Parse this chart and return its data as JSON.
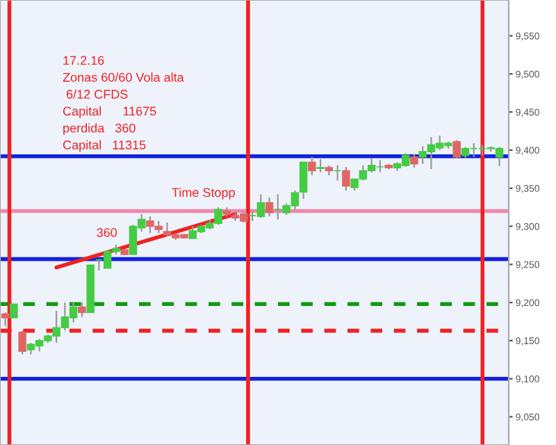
{
  "chart_data": {
    "type": "candlestick",
    "categories": [
      null,
      null,
      null,
      null,
      null,
      null,
      null,
      null,
      null,
      null,
      null,
      null,
      null,
      null,
      null,
      null,
      null,
      null,
      null,
      null,
      null,
      null,
      null,
      null,
      null,
      null,
      null,
      null,
      null,
      null,
      null,
      null,
      null,
      null,
      null,
      null,
      null,
      null,
      null,
      null,
      null,
      null,
      null,
      null,
      null,
      null,
      null,
      null,
      null,
      null,
      null,
      null,
      null,
      null,
      null,
      null,
      null,
      null,
      null
    ],
    "ohlc": [
      [
        9185,
        9187,
        9169,
        9180
      ],
      [
        9180,
        9198,
        9180,
        9198
      ],
      [
        9161,
        9163,
        9132,
        9136
      ],
      [
        9138,
        9147,
        9132,
        9145
      ],
      [
        9143,
        9152,
        9136,
        9150
      ],
      [
        9150,
        9158,
        9147,
        9156
      ],
      [
        9156,
        9189,
        9147,
        9167
      ],
      [
        9167,
        9200,
        9163,
        9181
      ],
      [
        9180,
        9200,
        9174,
        9194
      ],
      [
        9194,
        9200,
        9181,
        9187
      ],
      [
        9187,
        9249,
        9187,
        9249
      ],
      [
        9256,
        9256,
        9242,
        9256
      ],
      [
        9245,
        9269,
        9245,
        9267
      ],
      [
        9267,
        9276,
        9263,
        9271
      ],
      [
        9269,
        9270,
        9262,
        9263
      ],
      [
        9263,
        9302,
        9263,
        9300
      ],
      [
        9298,
        9316,
        9293,
        9309
      ],
      [
        9307,
        9313,
        9291,
        9300
      ],
      [
        9300,
        9307,
        9291,
        9296
      ],
      [
        9293,
        9305,
        9287,
        9289
      ],
      [
        9289,
        9290,
        9282,
        9285
      ],
      [
        9289,
        9290,
        9284,
        9285
      ],
      [
        9284,
        9300,
        9284,
        9294
      ],
      [
        9293,
        9302,
        9291,
        9300
      ],
      [
        9298,
        9309,
        9296,
        9304
      ],
      [
        9304,
        9325,
        9302,
        9322
      ],
      [
        9320,
        9325,
        9313,
        9316
      ],
      [
        9314,
        9318,
        9307,
        9311
      ],
      [
        9316,
        9318,
        9305,
        9307
      ],
      [
        9314,
        9320,
        9307,
        9314
      ],
      [
        9313,
        9342,
        9311,
        9331
      ],
      [
        9331,
        9338,
        9313,
        9318
      ],
      [
        9322,
        9342,
        9309,
        9322
      ],
      [
        9318,
        9330,
        9315,
        9327
      ],
      [
        9327,
        9347,
        9322,
        9344
      ],
      [
        9345,
        9384,
        9336,
        9384
      ],
      [
        9384,
        9391,
        9367,
        9373
      ],
      [
        9376,
        9388,
        9371,
        9377
      ],
      [
        9377,
        9380,
        9367,
        9373
      ],
      [
        9373,
        9380,
        9360,
        9373
      ],
      [
        9373,
        9378,
        9347,
        9353
      ],
      [
        9351,
        9362,
        9347,
        9362
      ],
      [
        9362,
        9380,
        9360,
        9373
      ],
      [
        9373,
        9389,
        9371,
        9380
      ],
      [
        9378,
        9387,
        9371,
        9378
      ],
      [
        9380,
        9382,
        9375,
        9377
      ],
      [
        9377,
        9384,
        9373,
        9382
      ],
      [
        9380,
        9396,
        9378,
        9393
      ],
      [
        9391,
        9395,
        9377,
        9382
      ],
      [
        9391,
        9405,
        9382,
        9398
      ],
      [
        9398,
        9417,
        9375,
        9407
      ],
      [
        9403,
        9419,
        9400,
        9409
      ],
      [
        9406,
        9411,
        9402,
        9409
      ],
      [
        9411,
        9413,
        9389,
        9391
      ],
      [
        9393,
        9404,
        9389,
        9402
      ],
      [
        9402,
        9409,
        9391,
        9402
      ],
      [
        9402,
        9407,
        9393,
        9402
      ],
      [
        9402,
        9405,
        9398,
        9403
      ],
      [
        9391,
        9404,
        9379,
        9402
      ]
    ],
    "series": [
      {
        "type": "line",
        "color": "#ee2222",
        "values": [
          null,
          null,
          null,
          null,
          null,
          null,
          9246,
          null,
          null,
          null,
          null,
          null,
          null,
          null,
          null,
          null,
          null,
          null,
          null,
          null,
          null,
          null,
          null,
          null,
          null,
          null,
          null,
          9316,
          null,
          null,
          null,
          null,
          null,
          null,
          null,
          null,
          null,
          null,
          null,
          null,
          null,
          null,
          null,
          null,
          null,
          null,
          null,
          null,
          null,
          null,
          null,
          null,
          null,
          null,
          null,
          null,
          null,
          null,
          null
        ]
      }
    ],
    "ylim": [
      9013,
      9597
    ],
    "yticks": [
      {
        "value": 9050,
        "label": "9,050"
      },
      {
        "value": 9100,
        "label": "9,100"
      },
      {
        "value": 9150,
        "label": "9,150"
      },
      {
        "value": 9200,
        "label": "9,200"
      },
      {
        "value": 9250,
        "label": "9,250"
      },
      {
        "value": 9300,
        "label": "9,300"
      },
      {
        "value": 9350,
        "label": "9,350"
      },
      {
        "value": 9400,
        "label": "9,400"
      },
      {
        "value": 9450,
        "label": "9,450"
      },
      {
        "value": 9500,
        "label": "9,500"
      },
      {
        "value": 9550,
        "label": "9,550"
      }
    ],
    "tick_labels": "y",
    "ref_lines": [
      {
        "axis": "y",
        "value": 9100,
        "color": "#1122dd"
      },
      {
        "axis": "y",
        "value": 9257,
        "color": "#1122dd"
      },
      {
        "axis": "y",
        "value": 9392,
        "color": "#1122dd"
      },
      {
        "axis": "y",
        "value": 9198,
        "color": "#119911",
        "line_style": "dashed"
      },
      {
        "axis": "y",
        "value": 9163,
        "color": "#ee2222",
        "line_style": "dashed"
      },
      {
        "axis": "y",
        "value": 9320,
        "color": "#ee88aa"
      }
    ],
    "annotations": [
      "17.2.16",
      "Zonas 60/60 Vola alta",
      " 6/12 CFDS",
      "Capital      11675",
      "perdida   360",
      "Capital   11315",
      "Time Stopp",
      "360"
    ]
  }
}
